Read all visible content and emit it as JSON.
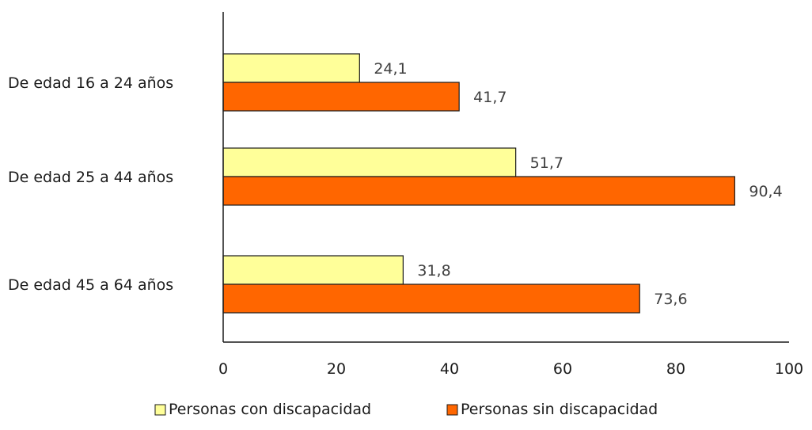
{
  "chart_data": {
    "type": "bar",
    "orientation": "horizontal",
    "categories": [
      "De edad 16 a 24 años",
      "De edad 25 a 44 años",
      "De edad 45 a 64 años"
    ],
    "series": [
      {
        "name": "Personas con discapacidad",
        "values": [
          24.1,
          51.7,
          31.8
        ],
        "labels": [
          "24,1",
          "51,7",
          "31,8"
        ],
        "color": "#ffff99"
      },
      {
        "name": "Personas sin discapacidad",
        "values": [
          41.7,
          90.4,
          73.6
        ],
        "labels": [
          "41,7",
          "90,4",
          "73,6"
        ],
        "color": "#ff6600"
      }
    ],
    "xlim": [
      0,
      100
    ],
    "xticks": [
      "0",
      "20",
      "40",
      "60",
      "80",
      "100"
    ],
    "grid": false,
    "legend": "bottom",
    "title": "",
    "xlabel": "",
    "ylabel": ""
  }
}
